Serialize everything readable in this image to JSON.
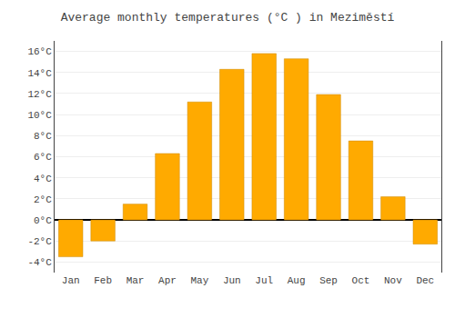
{
  "chart_data": {
    "type": "bar",
    "title": "Average monthly temperatures (°C ) in Meziměstí",
    "categories": [
      "Jan",
      "Feb",
      "Mar",
      "Apr",
      "May",
      "Jun",
      "Jul",
      "Aug",
      "Sep",
      "Oct",
      "Nov",
      "Dec"
    ],
    "values": [
      -3.5,
      -2.0,
      1.5,
      6.3,
      11.2,
      14.3,
      15.8,
      15.3,
      11.9,
      7.5,
      2.2,
      -2.3
    ],
    "color": "#FFAA00",
    "ylim": [
      -5,
      17
    ],
    "yticks": [
      {
        "value": -4,
        "label": "-4°C"
      },
      {
        "value": -2,
        "label": "-2°C"
      },
      {
        "value": 0,
        "label": "0°C"
      },
      {
        "value": 2,
        "label": "2°C"
      },
      {
        "value": 4,
        "label": "4°C"
      },
      {
        "value": 6,
        "label": "6°C"
      },
      {
        "value": 8,
        "label": "8°C"
      },
      {
        "value": 10,
        "label": "10°C"
      },
      {
        "value": 12,
        "label": "12°C"
      },
      {
        "value": 14,
        "label": "14°C"
      },
      {
        "value": 16,
        "label": "16°C"
      }
    ],
    "grid": true
  }
}
